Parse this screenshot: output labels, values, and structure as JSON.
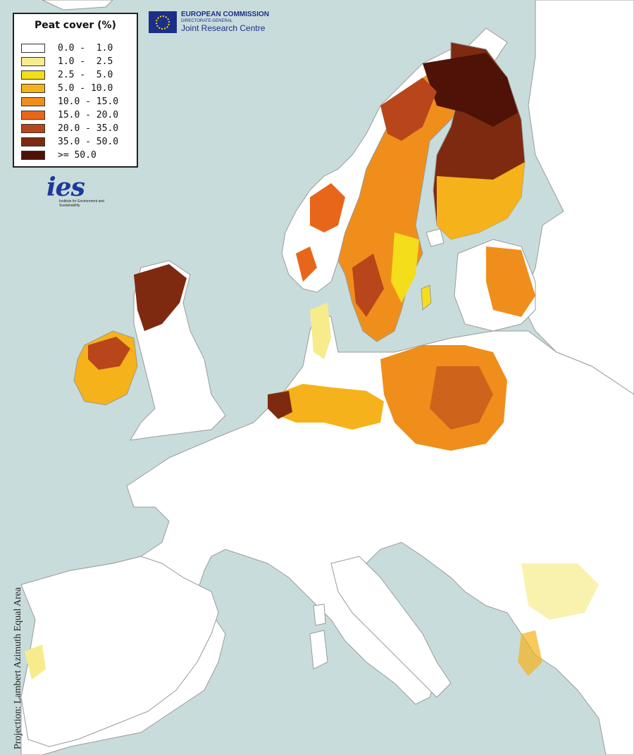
{
  "legend": {
    "title": "Peat cover (%)",
    "classes": [
      {
        "label": "0.0 -  1.0",
        "color": "#ffffff"
      },
      {
        "label": "1.0 -  2.5",
        "color": "#f7ec8c"
      },
      {
        "label": "2.5 -  5.0",
        "color": "#f4dd1a"
      },
      {
        "label": "5.0 - 10.0",
        "color": "#f5b21a"
      },
      {
        "label": "10.0 - 15.0",
        "color": "#f08e1c"
      },
      {
        "label": "15.0 - 20.0",
        "color": "#e8661a"
      },
      {
        "label": "20.0 - 35.0",
        "color": "#b8461a"
      },
      {
        "label": "35.0 - 50.0",
        "color": "#7e2a10"
      },
      {
        "label": ">= 50.0",
        "color": "#4e1206"
      }
    ]
  },
  "ec_logo": {
    "line1": "EUROPEAN COMMISSION",
    "line2": "DIRECTORATE-GENERAL",
    "line3": "Joint Research Centre"
  },
  "ies_logo": {
    "mark": "ies",
    "subtitle": "Institute for Environment and Sustainability"
  },
  "projection_note": "Projection: Lambert Azimuth Equal Area",
  "colors": {
    "sea": "#c9dcdc",
    "land": "#ffffff",
    "outside_land": "#e9e9e9",
    "border": "#9a9a9a"
  }
}
